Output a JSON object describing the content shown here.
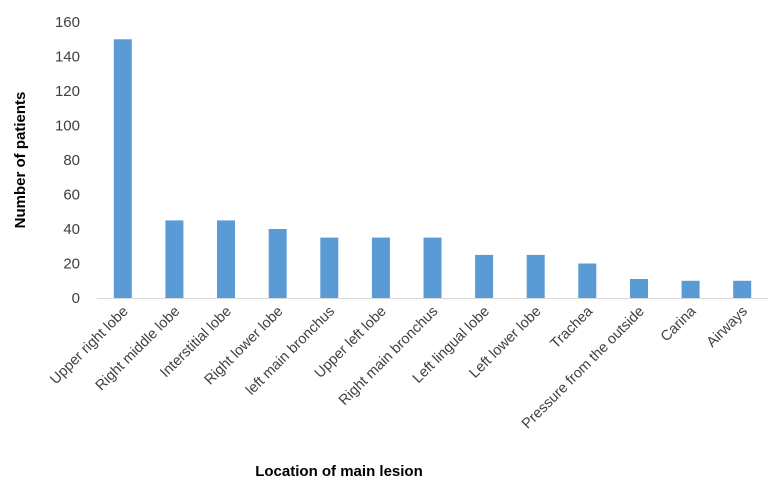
{
  "chart_data": {
    "type": "bar",
    "title": "",
    "xlabel": "Location of main lesion",
    "ylabel": "Number of patients",
    "categories": [
      "Upper right lobe",
      "Right middle lobe",
      "Interstitial lobe",
      "Right lower lobe",
      "left main bronchus",
      "Upper left lobe",
      "Right main bronchus",
      "Left lingual lobe",
      "Left lower lobe",
      "Trachea",
      "Pressure from the outside",
      "Carina",
      "Airways"
    ],
    "values": [
      150,
      45,
      45,
      40,
      35,
      35,
      35,
      25,
      25,
      20,
      11,
      10,
      10
    ],
    "ylim": [
      0,
      160
    ],
    "yticks": [
      0,
      20,
      40,
      60,
      80,
      100,
      120,
      140,
      160
    ],
    "grid": false,
    "legend": "none",
    "bar_color": "#5B9BD5",
    "axis_color": "#D9D9D9",
    "text_color": "#404040"
  }
}
